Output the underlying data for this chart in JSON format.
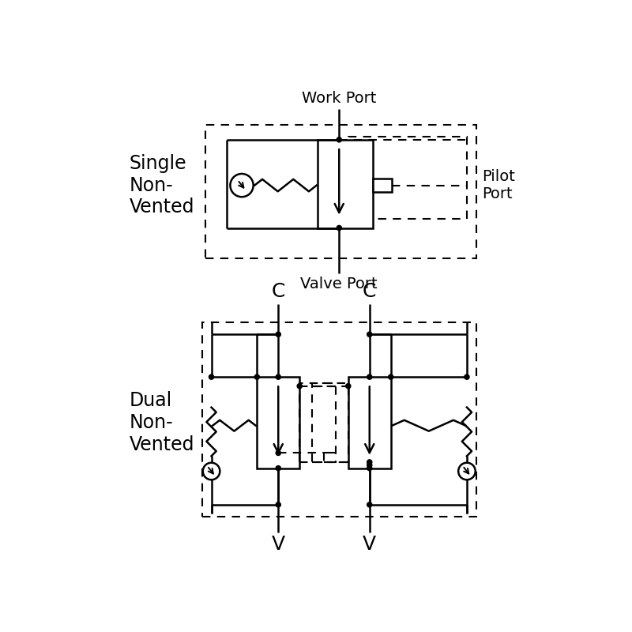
{
  "bg_color": "#ffffff",
  "line_color": "#000000",
  "single_label": "Single\nNon-\nVented",
  "dual_label": "Dual\nNon-\nVented",
  "work_port_label": "Work Port",
  "valve_port_label": "Valve Port",
  "pilot_port_label": "Pilot\nPort",
  "c_label": "C",
  "v_label": "V",
  "lw": 1.8,
  "lw_dash": 1.5,
  "dot_r": 4.0,
  "font_size_label": 17,
  "font_size_port": 14
}
